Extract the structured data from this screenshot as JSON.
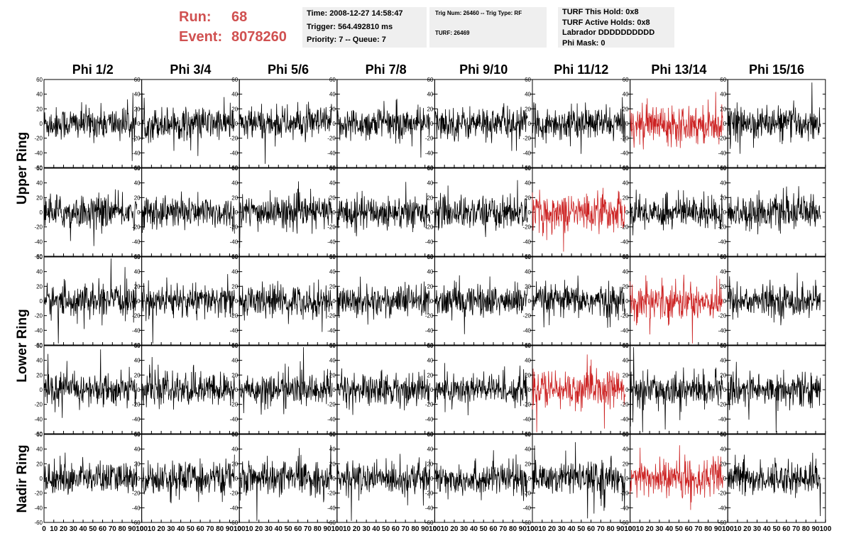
{
  "header": {
    "run_label": "Run:",
    "run_value": "68",
    "event_label": "Event:",
    "event_value": "8078260",
    "time": "Time: 2008-12-27 14:58:47",
    "trigger": "Trigger: 564.492810 ms",
    "priority": "Priority: 7 -- Queue: 7",
    "trig_info": "Trig Num: 26460 -- Trig Type: RF",
    "turf": "TURF: 26469",
    "turf_this_hold": "TURF This Hold: 0x8",
    "turf_active_holds": "TURF Active Holds: 0x8",
    "labrador": "Labrador DDDDDDDDDD",
    "phi_mask": "Phi Mask: 0"
  },
  "colors": {
    "trace": "#000000",
    "highlight": "#cc2222",
    "accent_text": "#d05050",
    "info_bg": "#efefef"
  },
  "chart_data": {
    "type": "line",
    "columns": [
      "Phi 1/2",
      "Phi 3/4",
      "Phi 5/6",
      "Phi 7/8",
      "Phi 9/10",
      "Phi 11/12",
      "Phi 13/14",
      "Phi 15/16"
    ],
    "row_groups": [
      {
        "label": "Upper Ring",
        "rows": [
          0,
          1
        ]
      },
      {
        "label": "Lower Ring",
        "rows": [
          2,
          3
        ]
      },
      {
        "label": "Nadir Ring",
        "rows": [
          4
        ]
      }
    ],
    "n_rows": 5,
    "xlim": [
      0,
      100
    ],
    "ylim": [
      -60,
      60
    ],
    "y_ticks": [
      "60",
      "40",
      "20",
      "0",
      "-20",
      "-40",
      "-60"
    ],
    "x_ticks": [
      "0",
      "10",
      "20",
      "30",
      "40",
      "50",
      "60",
      "70",
      "80",
      "90",
      "100"
    ],
    "samples_per_trace": 260,
    "trace_end_x": 95,
    "typical_amplitude": 20,
    "highlighted_panels": [
      [
        0,
        6
      ],
      [
        1,
        5
      ],
      [
        2,
        6
      ],
      [
        3,
        5
      ],
      [
        4,
        6
      ]
    ],
    "grid": false,
    "legend": "none"
  }
}
